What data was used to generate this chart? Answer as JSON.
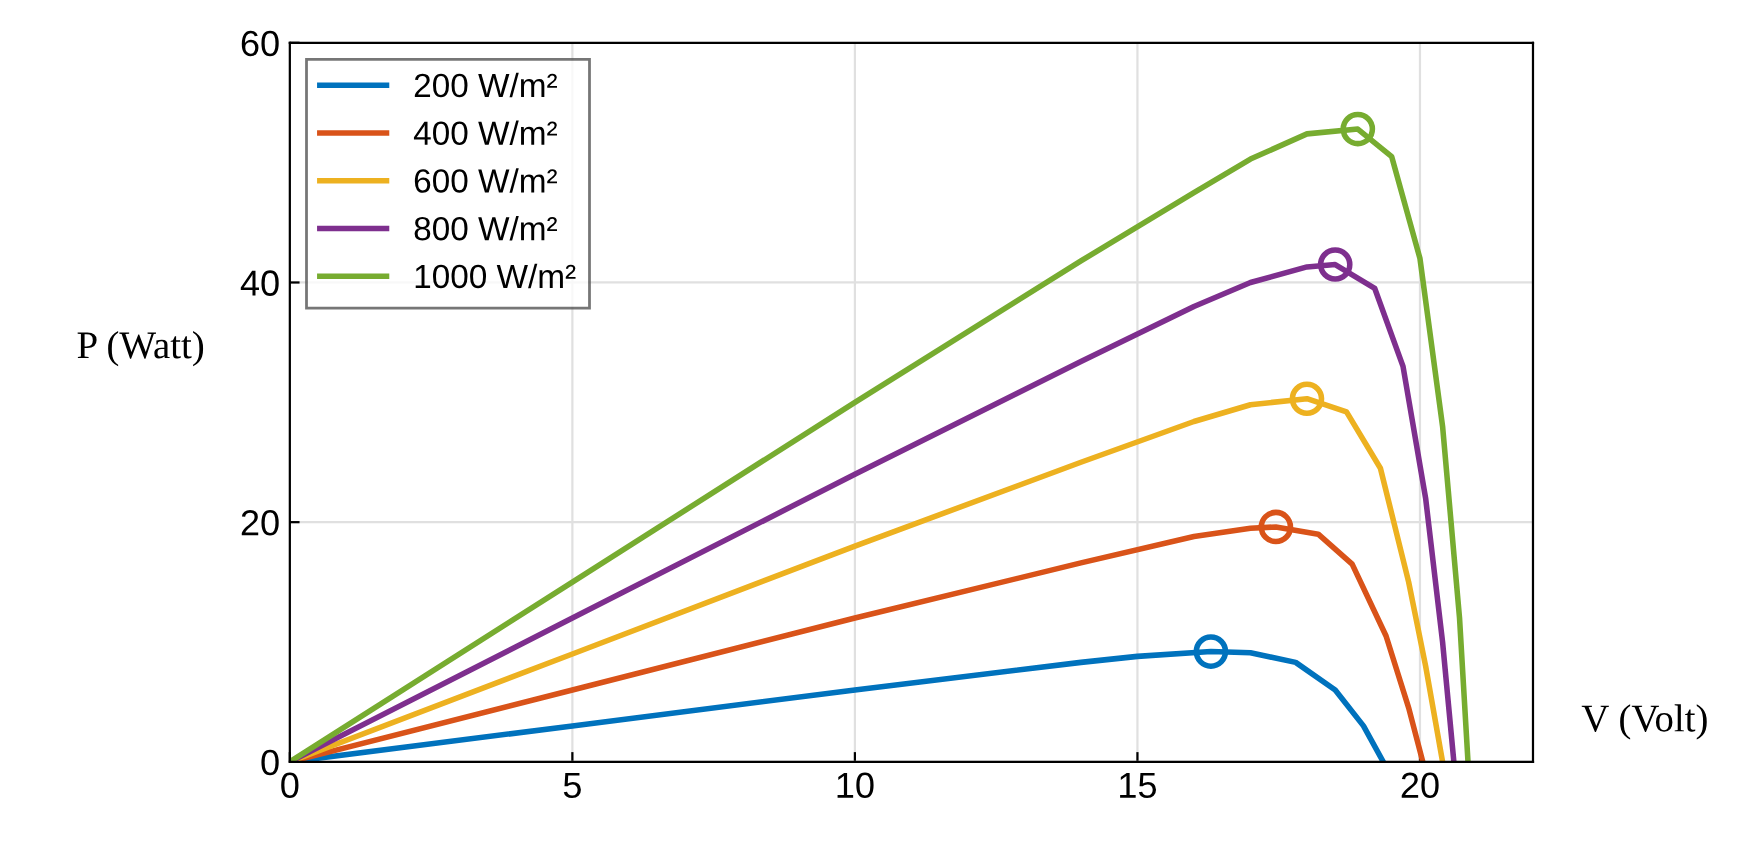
{
  "chart_data": {
    "type": "line",
    "xlabel": "V (Volt)",
    "ylabel": "P (Watt)",
    "xlim": [
      0,
      22
    ],
    "xticks": [
      0,
      5,
      10,
      15,
      20
    ],
    "ylim": [
      0,
      60
    ],
    "yticks": [
      0,
      20,
      40,
      60
    ],
    "grid": true,
    "legend": "top left",
    "marker": "none",
    "line_style": "solid",
    "series": [
      {
        "name": "200 W/m²",
        "color": "#0072bd",
        "x": [
          0,
          5,
          10,
          14,
          15,
          16.3,
          17,
          17.8,
          18.5,
          19,
          19.35
        ],
        "values": [
          0,
          3,
          6,
          8.3,
          8.8,
          9.2,
          9.1,
          8.3,
          6,
          3,
          0
        ]
      },
      {
        "name": "400 W/m²",
        "color": "#d95319",
        "x": [
          0,
          5,
          10,
          14,
          16,
          17,
          17.45,
          18.2,
          18.8,
          19.4,
          19.8,
          20.05
        ],
        "values": [
          0,
          6,
          12,
          16.6,
          18.8,
          19.5,
          19.6,
          19,
          16.5,
          10.5,
          4.5,
          0
        ]
      },
      {
        "name": "600 W/m²",
        "color": "#edb120",
        "x": [
          0,
          5,
          10,
          14,
          16,
          17,
          18,
          18.7,
          19.3,
          19.8,
          20.1,
          20.4
        ],
        "values": [
          0,
          9,
          18,
          25,
          28.4,
          29.8,
          30.3,
          29.2,
          24.5,
          15,
          8,
          0
        ]
      },
      {
        "name": "800 W/m²",
        "color": "#7e2f8e",
        "x": [
          0,
          5,
          10,
          14,
          16,
          17,
          18,
          18.5,
          19.2,
          19.7,
          20.1,
          20.4,
          20.6
        ],
        "values": [
          0,
          12,
          24,
          33.4,
          38,
          40,
          41.3,
          41.5,
          39.5,
          33,
          22,
          10,
          0
        ]
      },
      {
        "name": "1000 W/m²",
        "color": "#77ac30",
        "x": [
          0,
          5,
          10,
          14,
          16,
          17,
          18,
          18.9,
          19.5,
          20,
          20.4,
          20.7,
          20.85
        ],
        "values": [
          0,
          15,
          30,
          41.8,
          47.5,
          50.3,
          52.4,
          52.8,
          50.5,
          42,
          28,
          12,
          0
        ]
      },
      {
        "type": "scatter",
        "marker": "circle",
        "x": [
          16.3,
          17.45,
          18,
          18.5,
          18.9
        ],
        "values": [
          9.2,
          19.6,
          30.3,
          41.5,
          52.8
        ],
        "colors": [
          "#0072bd",
          "#d95319",
          "#edb120",
          "#7e2f8e",
          "#77ac30"
        ]
      }
    ]
  }
}
